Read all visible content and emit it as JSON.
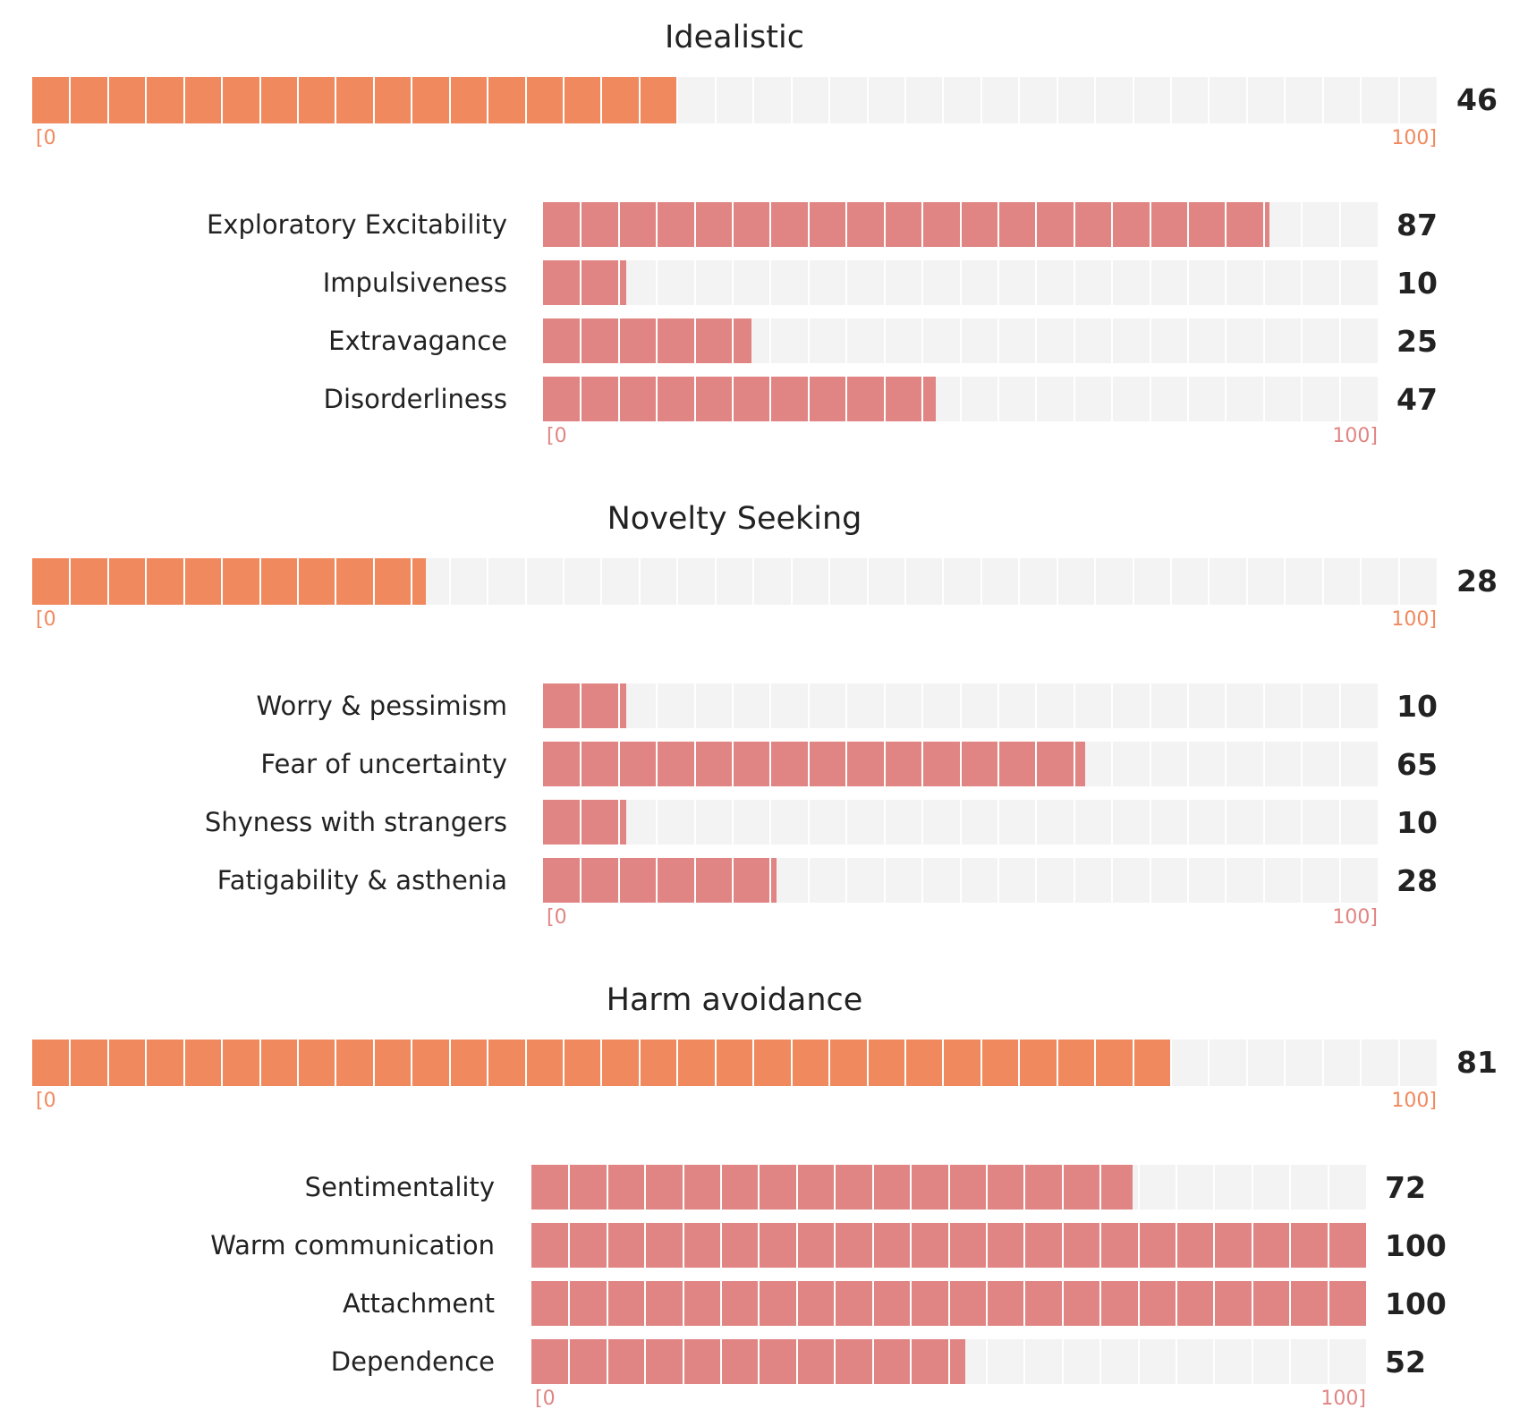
{
  "colors": {
    "main_bar": "#f0895e",
    "sub_bar": "#e08583",
    "track": "#f3f3f3",
    "main_scale": "#f0895e",
    "sub_scale": "#e08583"
  },
  "chart_data": {
    "type": "bar",
    "orientation": "horizontal",
    "xlim": [
      0,
      100
    ],
    "scale_min_label": "[0",
    "scale_max_label": "100]",
    "sections": [
      {
        "title": "Idealistic",
        "value": 46,
        "subscales": [
          {
            "label": "Exploratory Excitability",
            "value": 87
          },
          {
            "label": "Impulsiveness",
            "value": 10
          },
          {
            "label": "Extravagance",
            "value": 25
          },
          {
            "label": "Disorderliness",
            "value": 47
          }
        ]
      },
      {
        "title": "Novelty Seeking",
        "value": 28,
        "subscales": [
          {
            "label": "Worry & pessimism",
            "value": 10
          },
          {
            "label": "Fear of uncertainty",
            "value": 65
          },
          {
            "label": "Shyness with strangers",
            "value": 10
          },
          {
            "label": "Fatigability & asthenia",
            "value": 28
          }
        ]
      },
      {
        "title": "Harm avoidance",
        "value": 81,
        "subscales": [
          {
            "label": "Sentimentality",
            "value": 72
          },
          {
            "label": "Warm communication",
            "value": 100
          },
          {
            "label": "Attachment",
            "value": 100
          },
          {
            "label": "Dependence",
            "value": 52
          }
        ]
      }
    ]
  }
}
